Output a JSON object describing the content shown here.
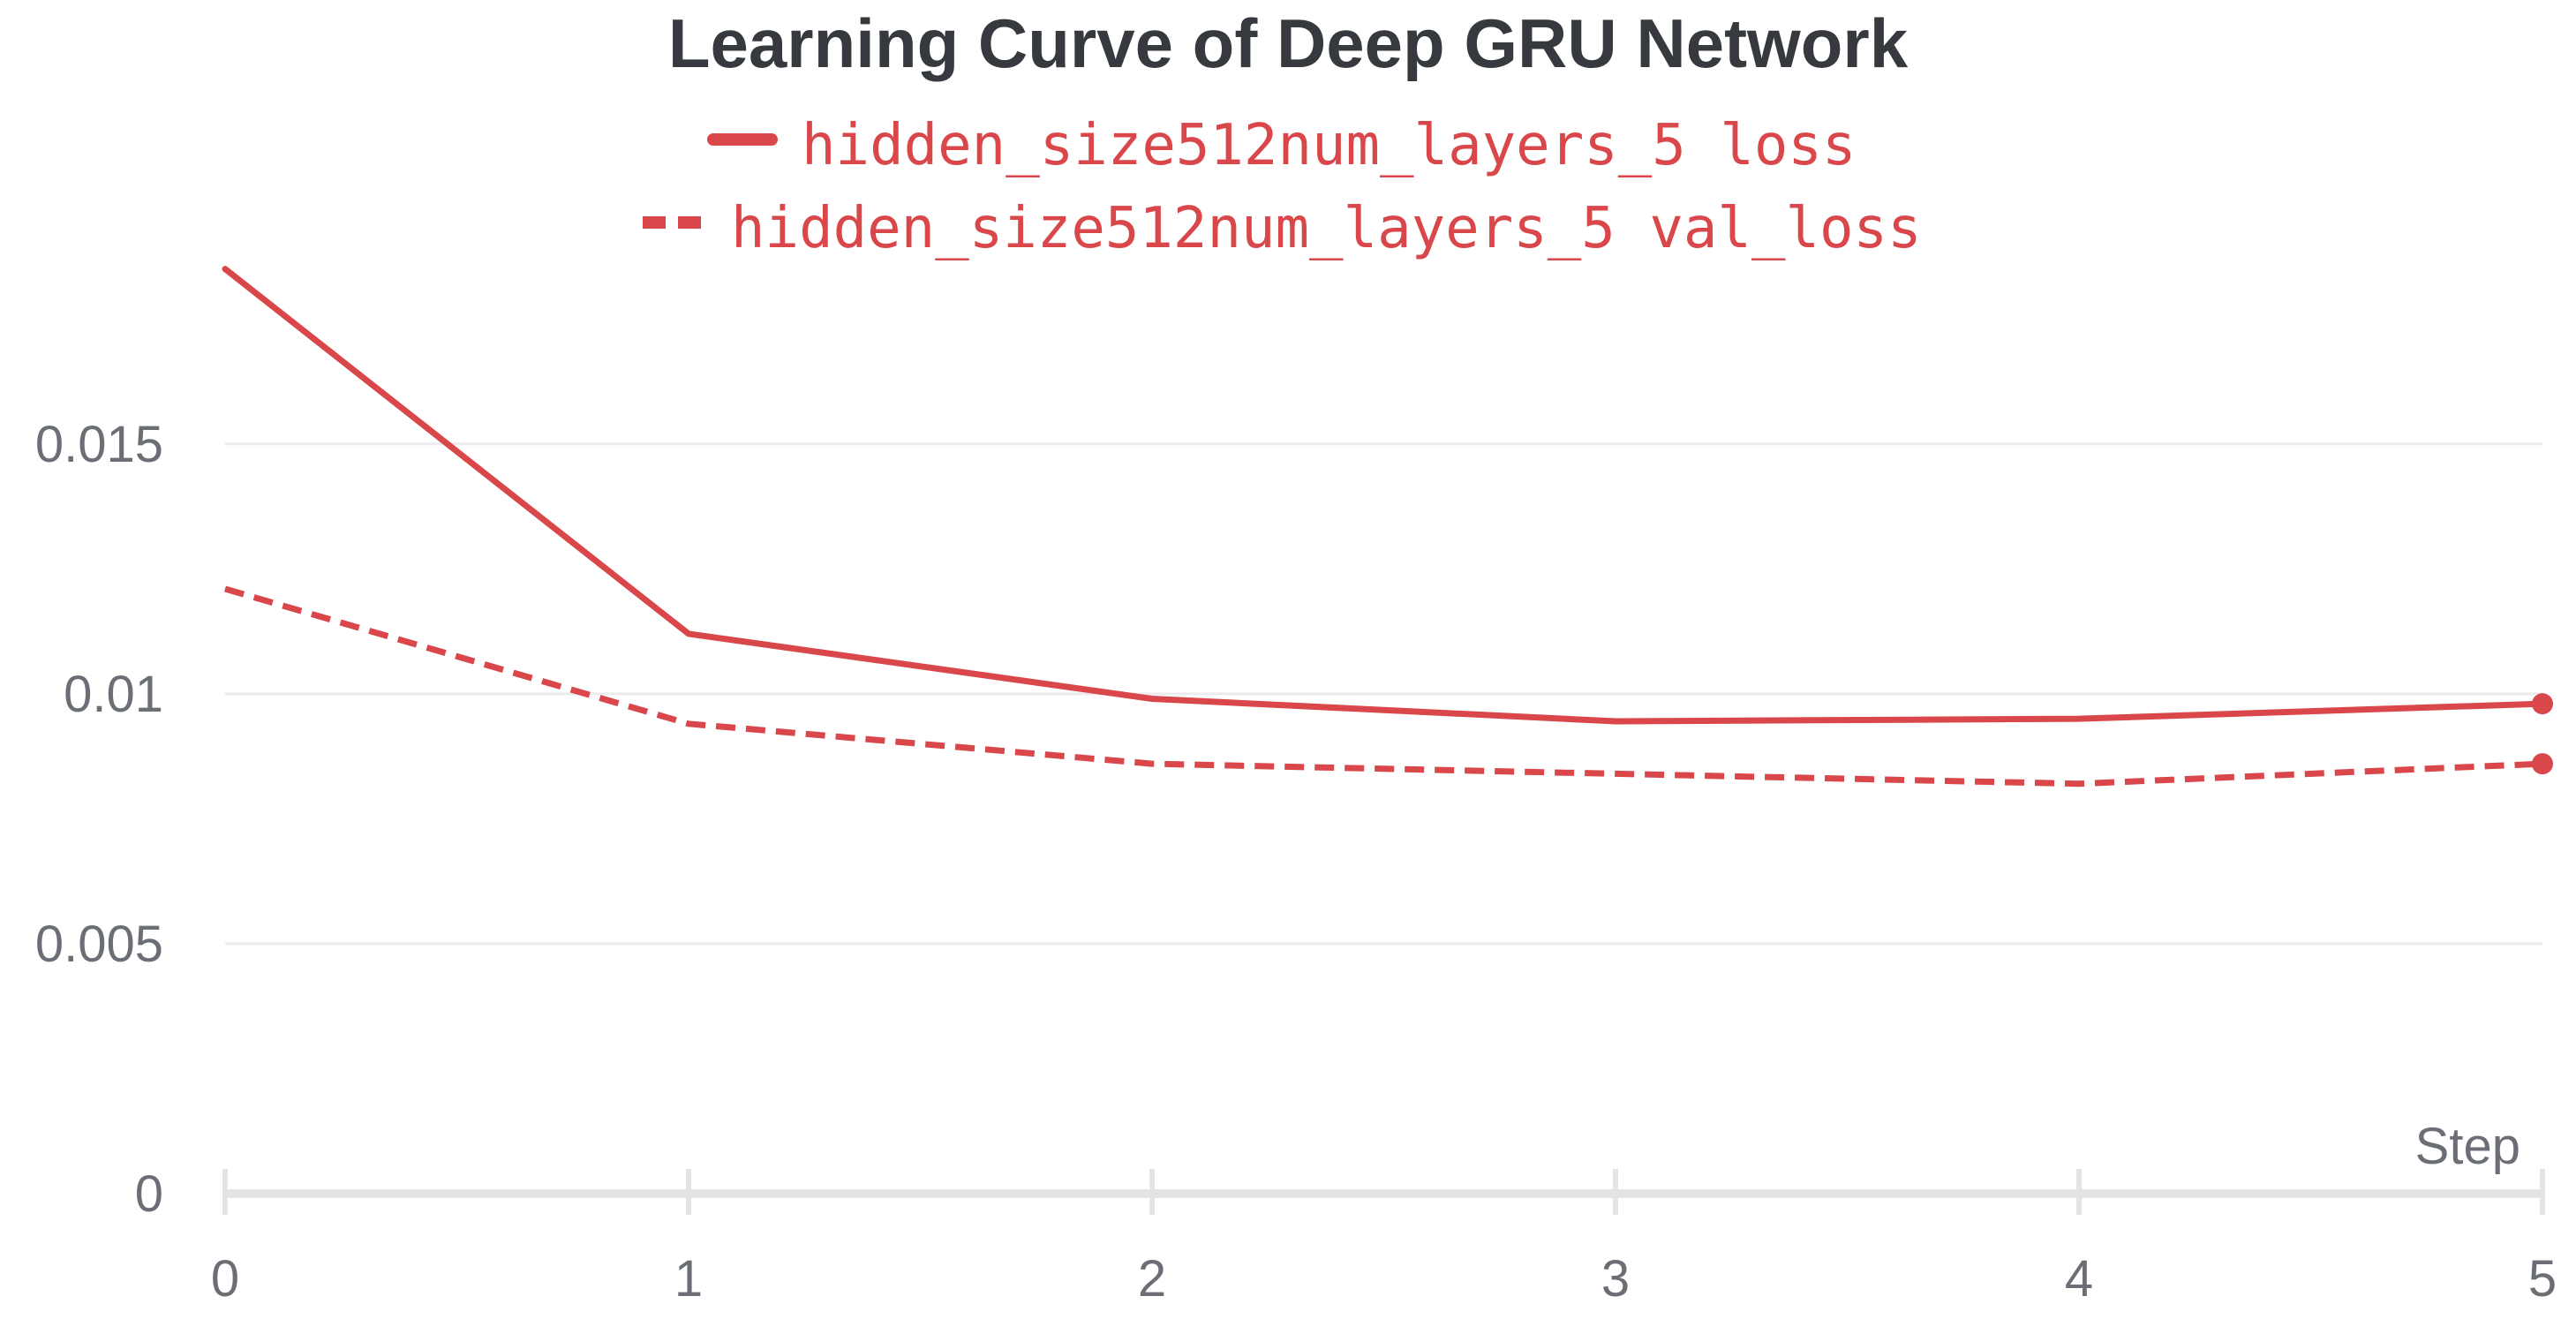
{
  "chart_data": {
    "type": "line",
    "title": "Learning Curve of Deep GRU Network",
    "xlabel": "Step",
    "ylabel": "",
    "x": [
      0,
      1,
      2,
      3,
      4,
      5
    ],
    "xticks": [
      "0",
      "1",
      "2",
      "3",
      "4",
      "5"
    ],
    "xlim": [
      0,
      5
    ],
    "yticks": [
      "0",
      "0.005",
      "0.01",
      "0.015"
    ],
    "ytick_values": [
      0,
      0.005,
      0.01,
      0.015
    ],
    "ylim": [
      0,
      0.0195
    ],
    "grid": true,
    "legend_position": "top-center",
    "series": [
      {
        "name": "hidden_size512num_layers_5 loss",
        "style": "solid",
        "color": "#d9474b",
        "values": [
          0.0185,
          0.0112,
          0.0099,
          0.00945,
          0.0095,
          0.0098
        ]
      },
      {
        "name": "hidden_size512num_layers_5 val_loss",
        "style": "dashed",
        "color": "#d9474b",
        "values": [
          0.0121,
          0.0094,
          0.0086,
          0.0084,
          0.0082,
          0.0086
        ]
      }
    ]
  }
}
